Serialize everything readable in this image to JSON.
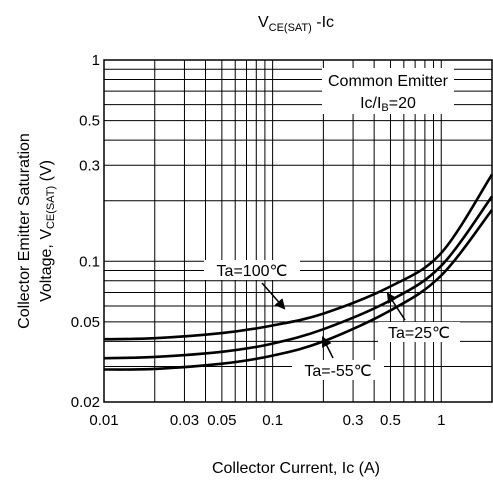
{
  "chart_data": {
    "type": "line",
    "title": {
      "main": "V",
      "sub": "CE(SAT)",
      "tail": " -Ic"
    },
    "xlabel": "Collector Current, Ic (A)",
    "ylabel_line1": "Collector Emitter Saturation",
    "ylabel_line2": {
      "main": "Voltage, V",
      "sub": "CE(SAT)",
      "tail": " (V)"
    },
    "x_scale": "log",
    "y_scale": "log",
    "xlim": [
      0.01,
      2
    ],
    "ylim": [
      0.02,
      1
    ],
    "grid": true,
    "x_ticks": [
      {
        "value": 0.01,
        "label": "0.01"
      },
      {
        "value": 0.03,
        "label": "0.03"
      },
      {
        "value": 0.05,
        "label": "0.05"
      },
      {
        "value": 0.1,
        "label": "0.1"
      },
      {
        "value": 0.3,
        "label": "0.3"
      },
      {
        "value": 0.5,
        "label": "0.5"
      },
      {
        "value": 1,
        "label": "1"
      }
    ],
    "y_ticks": [
      {
        "value": 0.02,
        "label": "0.02"
      },
      {
        "value": 0.05,
        "label": "0.05"
      },
      {
        "value": 0.1,
        "label": "0.1"
      },
      {
        "value": 0.3,
        "label": "0.3"
      },
      {
        "value": 0.5,
        "label": "0.5"
      },
      {
        "value": 1,
        "label": "1"
      }
    ],
    "condition_box": {
      "line1": "Common Emitter",
      "line2": {
        "main": "Ic/I",
        "sub": "B",
        "tail": "=20"
      }
    },
    "series": [
      {
        "name": "Ta=100℃",
        "x": [
          0.01,
          0.02,
          0.05,
          0.1,
          0.2,
          0.5,
          1,
          2
        ],
        "y": [
          0.041,
          0.0415,
          0.044,
          0.048,
          0.055,
          0.075,
          0.11,
          0.27
        ]
      },
      {
        "name": "Ta=25℃",
        "x": [
          0.01,
          0.02,
          0.05,
          0.1,
          0.2,
          0.5,
          1,
          2
        ],
        "y": [
          0.033,
          0.0335,
          0.0355,
          0.039,
          0.046,
          0.064,
          0.095,
          0.21
        ]
      },
      {
        "name": "Ta=-55℃",
        "x": [
          0.01,
          0.02,
          0.05,
          0.1,
          0.2,
          0.5,
          1,
          2
        ],
        "y": [
          0.029,
          0.0292,
          0.031,
          0.034,
          0.04,
          0.057,
          0.085,
          0.18
        ]
      }
    ]
  }
}
